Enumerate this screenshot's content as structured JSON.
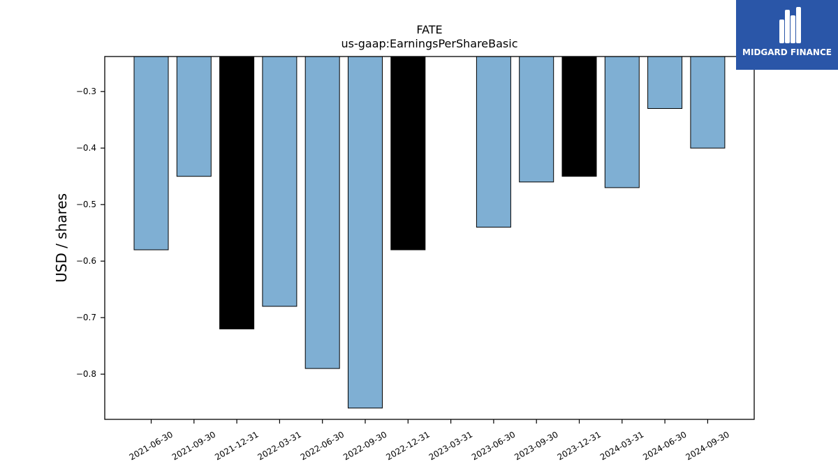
{
  "brand": {
    "name": "MIDGARD FINANCE",
    "color": "#2a56a8"
  },
  "chart_data": {
    "type": "bar",
    "title": "FATE",
    "subtitle": "us-gaap:EarningsPerShareBasic",
    "xlabel": "",
    "ylabel": "USD / shares",
    "categories": [
      "2021-06-30",
      "2021-09-30",
      "2021-12-31",
      "2022-03-31",
      "2022-06-30",
      "2022-09-30",
      "2022-12-31",
      "2023-03-31",
      "2023-06-30",
      "2023-09-30",
      "2023-12-31",
      "2024-03-31",
      "2024-06-30",
      "2024-09-30"
    ],
    "values": [
      -0.58,
      -0.45,
      -0.72,
      -0.68,
      -0.79,
      -0.86,
      -0.58,
      null,
      -0.54,
      -0.46,
      -0.45,
      -0.47,
      -0.33,
      -0.4
    ],
    "highlight": [
      false,
      false,
      true,
      false,
      false,
      false,
      true,
      false,
      false,
      false,
      true,
      false,
      false,
      false
    ],
    "colors": {
      "normal": "#7fafd3",
      "highlight": "#000000",
      "edge": "#000000"
    },
    "ylim": [
      -0.88,
      -0.238
    ],
    "yticks": [
      -0.3,
      -0.4,
      -0.5,
      -0.6,
      -0.7,
      -0.8
    ],
    "ytick_labels": [
      "−0.3",
      "−0.4",
      "−0.5",
      "−0.6",
      "−0.7",
      "−0.8"
    ],
    "grid": false,
    "legend": "none"
  }
}
